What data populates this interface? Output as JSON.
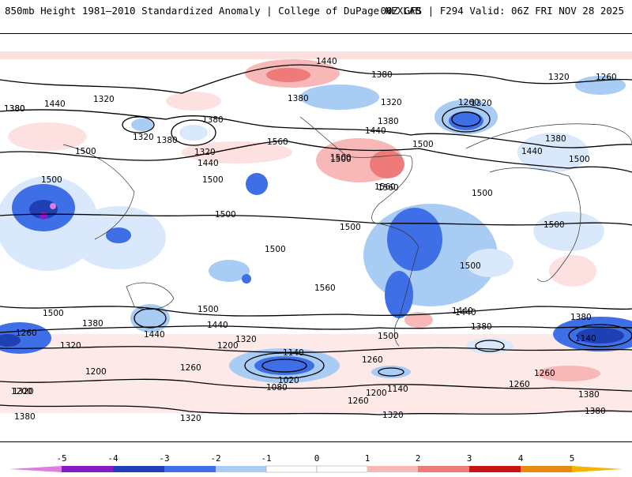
{
  "header": {
    "title": "850mb Height 1981–2010 Standardized Anomaly | College of DuPage NEXLAB",
    "run_info": "00Z GFS | F294 Valid: 06Z FRI NOV 28 2025"
  },
  "colors": {
    "neg5": "#e07de0",
    "neg4": "#8c1ac4",
    "neg3": "#1f3fb4",
    "neg2": "#3f6fe6",
    "neg1": "#a9ccf5",
    "neg05": "#d9e8fb",
    "zero": "#ffffff",
    "pos05": "#fde0e0",
    "pos1": "#f8b8b8",
    "pos2": "#ee7a7a",
    "pos3": "#c81414",
    "pos4": "#e88a10",
    "pos5": "#f6b400"
  },
  "map": {
    "contour_labels": [
      "1440",
      "1380",
      "1320",
      "1260",
      "1380",
      "1440",
      "1320",
      "1560",
      "1380",
      "1320",
      "1380",
      "1500",
      "1440",
      "1380",
      "1320",
      "1380",
      "1500",
      "1500",
      "1500",
      "1320",
      "1440",
      "1560",
      "1500",
      "1500",
      "1500",
      "1500",
      "1500",
      "1500",
      "1560",
      "1500",
      "1440",
      "1380",
      "1500",
      "1260",
      "1380",
      "1320",
      "1260",
      "1140",
      "1200",
      "1320",
      "1140",
      "1020",
      "1260",
      "1080",
      "1200",
      "1140",
      "1260",
      "1200",
      "1320",
      "1200",
      "1260",
      "1320",
      "1380",
      "1260",
      "1440",
      "1380",
      "1380",
      "1500",
      "1440",
      "1380",
      "1560",
      "1500",
      "1500",
      "1440",
      "1260",
      "1320",
      "1380",
      "1380",
      "1440",
      "1500",
      "1320"
    ]
  },
  "colorbar": {
    "tick_labels": [
      "-5",
      "-4",
      "-3",
      "-2",
      "-1",
      "0",
      "1",
      "2",
      "3",
      "4",
      "5"
    ]
  }
}
